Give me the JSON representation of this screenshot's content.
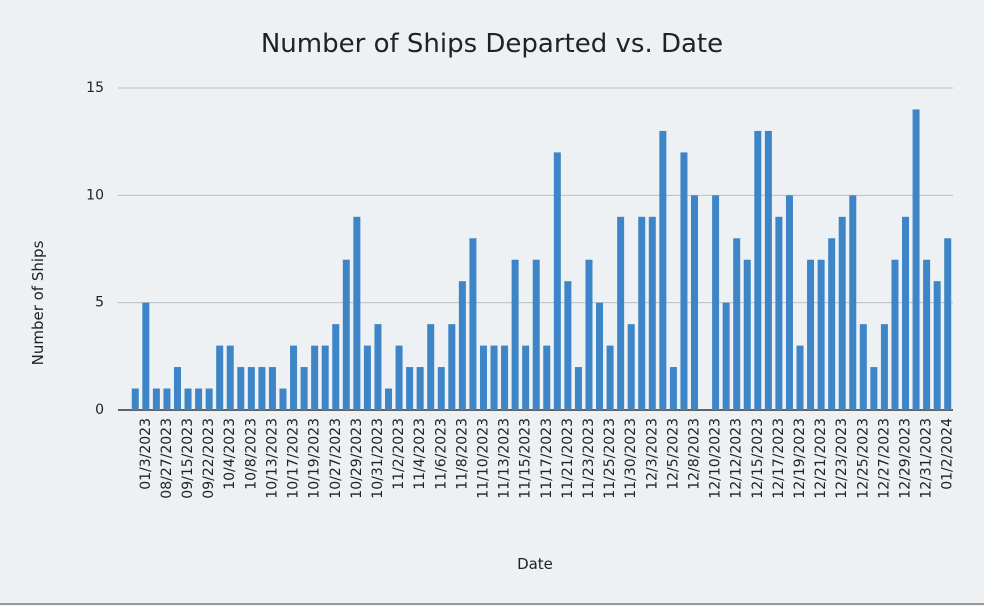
{
  "chart_data": {
    "type": "bar",
    "title": "Number of Ships Departed vs. Date",
    "x_label": "Date",
    "y_label": "Number of Ships",
    "categories": [
      null,
      "01/3/2023",
      null,
      "08/27/2023",
      null,
      "09/15/2023",
      null,
      "09/22/2023",
      null,
      "10/4/2023",
      null,
      "10/8/2023",
      null,
      "10/13/2023",
      null,
      "10/17/2023",
      null,
      "10/19/2023",
      null,
      "10/27/2023",
      null,
      "10/29/2023",
      null,
      "10/31/2023",
      null,
      "11/2/2023",
      null,
      "11/4/2023",
      null,
      "11/6/2023",
      null,
      "11/8/2023",
      null,
      "11/10/2023",
      null,
      "11/13/2023",
      null,
      "11/15/2023",
      null,
      "11/17/2023",
      null,
      "11/21/2023",
      null,
      "11/23/2023",
      null,
      "11/25/2023",
      null,
      "11/30/2023",
      null,
      "12/3/2023",
      null,
      "12/5/2023",
      null,
      "12/8/2023",
      null,
      "12/10/2023",
      null,
      "12/12/2023",
      null,
      "12/15/2023",
      null,
      "12/17/2023",
      null,
      "12/19/2023",
      null,
      "12/21/2023",
      null,
      "12/23/2023",
      null,
      "12/25/2023",
      null,
      "12/27/2023",
      null,
      "12/29/2023",
      null,
      "12/31/2023",
      null,
      "01/2/2024"
    ],
    "values": [
      1,
      5,
      1,
      1,
      2,
      1,
      1,
      1,
      3,
      3,
      2,
      2,
      2,
      2,
      1,
      3,
      2,
      3,
      3,
      4,
      7,
      9,
      3,
      4,
      1,
      3,
      2,
      2,
      4,
      2,
      4,
      6,
      8,
      3,
      3,
      3,
      7,
      3,
      7,
      3,
      12,
      6,
      2,
      7,
      5,
      3,
      9,
      4,
      9,
      9,
      13,
      2,
      12,
      10,
      0,
      10,
      5,
      8,
      7,
      13,
      13,
      9,
      10,
      3,
      7,
      7,
      8,
      9,
      10,
      4,
      2,
      4,
      7,
      9,
      14,
      7,
      6,
      8
    ],
    "color": "#3d85c6",
    "ylim": [
      0,
      15
    ],
    "yticks": [
      0,
      5,
      10,
      15
    ],
    "grid": true
  }
}
